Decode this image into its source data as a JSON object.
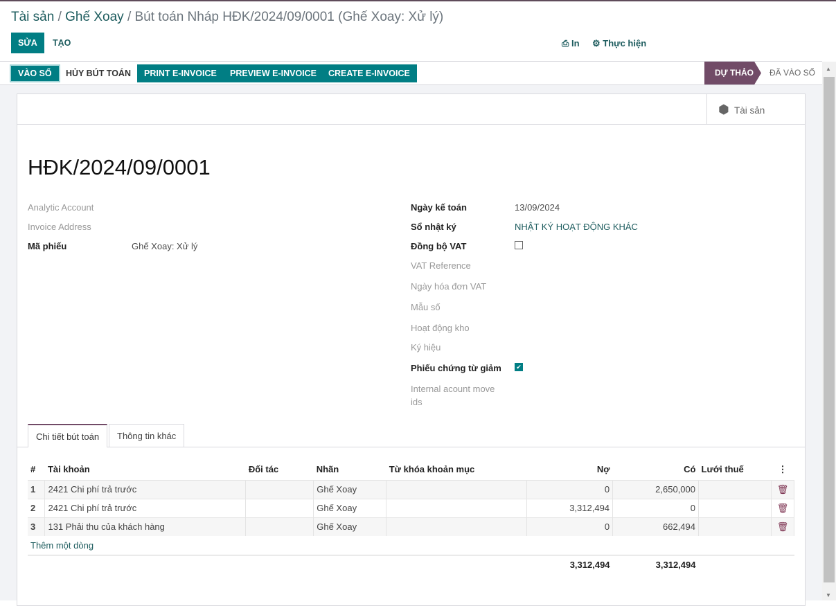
{
  "breadcrumb": {
    "items": [
      "Tài sản",
      "Ghế Xoay"
    ],
    "current": "Bút toán Nháp HĐK/2024/09/0001 (Ghế Xoay: Xử lý)",
    "sep": "/"
  },
  "toolbar": {
    "edit": "SỬA",
    "create": "TẠO",
    "print": "In",
    "action": "Thực hiện"
  },
  "actions": {
    "post": "VÀO SỔ",
    "cancel": "HỦY BÚT TOÁN",
    "print_einvoice": "PRINT E-INVOICE",
    "preview_einvoice": "PREVIEW E-INVOICE",
    "create_einvoice": "CREATE E-INVOICE"
  },
  "status": {
    "draft": "DỰ THẢO",
    "posted": "ĐÃ VÀO SỔ",
    "active_color": "#714b67"
  },
  "smart_button": {
    "label": "Tài sản"
  },
  "title": "HĐK/2024/09/0001",
  "left_fields": [
    {
      "label": "Analytic Account",
      "value": ""
    },
    {
      "label": "Invoice Address",
      "value": ""
    },
    {
      "label": "Mã phiếu",
      "value": "Ghế Xoay: Xử lý"
    }
  ],
  "right_fields": {
    "date_label": "Ngày kế toán",
    "date": "13/09/2024",
    "journal_label": "Sổ nhật ký",
    "journal": "NHẬT KÝ HOẠT ĐỘNG KHÁC",
    "vat_sync_label": "Đồng bộ VAT",
    "vat_sync": false,
    "vat_ref": "VAT Reference",
    "vat_date": "Ngày hóa đơn VAT",
    "template": "Mẫu số",
    "stock": "Hoạt động kho",
    "symbol": "Ký hiệu",
    "reduce_label": "Phiếu chứng từ giảm",
    "reduce": true,
    "internal": "Internal acount move ids"
  },
  "tabs": [
    "Chi tiết bút toán",
    "Thông tin khác"
  ],
  "table": {
    "headers": [
      "#",
      "Tài khoản",
      "Đối tác",
      "Nhãn",
      "Từ khóa khoản mục",
      "Nợ",
      "Có",
      "Lưới thuế"
    ],
    "rows": [
      [
        "1",
        "2421 Chi phí trả trước",
        "",
        "Ghế Xoay",
        "",
        "0",
        "2,650,000",
        ""
      ],
      [
        "2",
        "2421 Chi phí trả trước",
        "",
        "Ghế Xoay",
        "",
        "3,312,494",
        "0",
        ""
      ],
      [
        "3",
        "131 Phải thu của khách hàng",
        "",
        "Ghế Xoay",
        "",
        "0",
        "662,494",
        ""
      ]
    ],
    "add_line": "Thêm một dòng",
    "total_debit": "3,312,494",
    "total_credit": "3,312,494"
  }
}
